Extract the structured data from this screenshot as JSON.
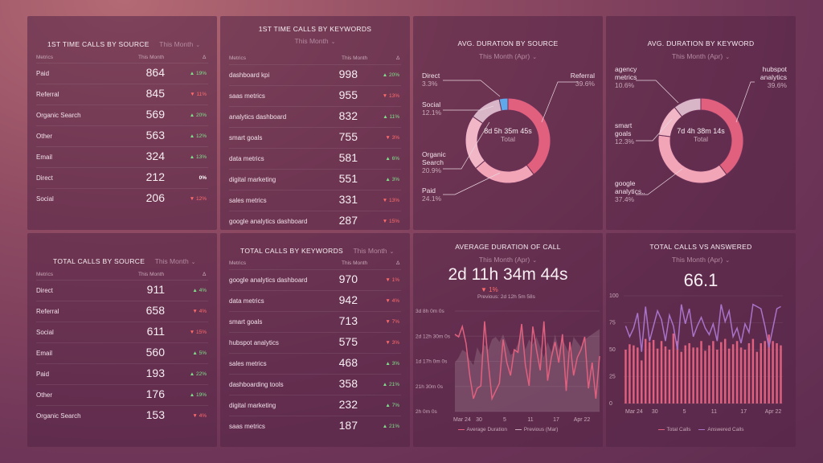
{
  "colors": {
    "pink": "#e0607e",
    "pink_light": "#f3a5b8",
    "purple": "#a873c8",
    "grey": "#c9a9b8",
    "blue": "#5fa8ea"
  },
  "sources_calls": {
    "title": "1ST TIME CALLS BY SOURCE",
    "subtitle": "This Month",
    "col_metrics": "Metrics",
    "col_period": "This Month",
    "col_delta": "Δ",
    "rows": [
      {
        "label": "Paid",
        "value": "864",
        "delta": "▲ 19%",
        "dir": "up"
      },
      {
        "label": "Referral",
        "value": "845",
        "delta": "▼ 11%",
        "dir": "down"
      },
      {
        "label": "Organic Search",
        "value": "569",
        "delta": "▲ 20%",
        "dir": "up"
      },
      {
        "label": "Other",
        "value": "563",
        "delta": "▲ 12%",
        "dir": "up"
      },
      {
        "label": "Email",
        "value": "324",
        "delta": "▲ 13%",
        "dir": "up"
      },
      {
        "label": "Direct",
        "value": "212",
        "delta": "0%",
        "dir": "flat"
      },
      {
        "label": "Social",
        "value": "206",
        "delta": "▼ 12%",
        "dir": "down"
      }
    ]
  },
  "keywords_calls": {
    "title": "1ST TIME CALLS BY KEYWORDS",
    "subtitle": "This Month",
    "col_metrics": "Metrics",
    "col_period": "This Month",
    "col_delta": "Δ",
    "rows": [
      {
        "label": "dashboard kpi",
        "value": "998",
        "delta": "▲ 20%",
        "dir": "up"
      },
      {
        "label": "saas metrics",
        "value": "955",
        "delta": "▼ 13%",
        "dir": "down"
      },
      {
        "label": "analytics dashboard",
        "value": "832",
        "delta": "▲ 11%",
        "dir": "up"
      },
      {
        "label": "smart goals",
        "value": "755",
        "delta": "▼ 3%",
        "dir": "down"
      },
      {
        "label": "data metrics",
        "value": "581",
        "delta": "▲ 6%",
        "dir": "up"
      },
      {
        "label": "digital marketing",
        "value": "551",
        "delta": "▲ 3%",
        "dir": "up"
      },
      {
        "label": "sales metrics",
        "value": "331",
        "delta": "▼ 13%",
        "dir": "down"
      },
      {
        "label": "google analytics dashboard",
        "value": "287",
        "delta": "▼ 15%",
        "dir": "down"
      }
    ]
  },
  "avg_source": {
    "title": "AVG. DURATION BY SOURCE",
    "subtitle": "This Month (Apr)",
    "center_value": "8d 5h 35m 45s",
    "center_label": "Total",
    "labels": [
      {
        "name": "Direct",
        "pct": "3.3%"
      },
      {
        "name": "Social",
        "pct": "12.1%"
      },
      {
        "name": "Organic Search",
        "pct": "20.9%"
      },
      {
        "name": "Paid",
        "pct": "24.1%"
      },
      {
        "name": "Referral",
        "pct": "39.6%"
      }
    ],
    "chart_data": {
      "type": "pie",
      "categories": [
        "Referral",
        "Paid",
        "Organic Search",
        "Social",
        "Direct"
      ],
      "values": [
        39.6,
        24.1,
        20.9,
        12.1,
        3.3
      ]
    }
  },
  "avg_keyword": {
    "title": "AVG. DURATION BY KEYWORD",
    "subtitle": "This Month (Apr)",
    "center_value": "7d 4h 38m 14s",
    "center_label": "Total",
    "labels": [
      {
        "name": "agency metrics",
        "pct": "10.6%"
      },
      {
        "name": "smart goals",
        "pct": "12.3%"
      },
      {
        "name": "google analytics..",
        "pct": "37.4%"
      },
      {
        "name": "hubspot analytics",
        "pct": "39.6%"
      }
    ],
    "chart_data": {
      "type": "pie",
      "categories": [
        "hubspot analytics",
        "google analytics..",
        "smart goals",
        "agency metrics"
      ],
      "values": [
        39.6,
        37.4,
        12.3,
        10.6
      ]
    }
  },
  "total_source": {
    "title": "TOTAL CALLS BY SOURCE",
    "subtitle": "This Month",
    "col_metrics": "Metrics",
    "col_period": "This Month",
    "col_delta": "Δ",
    "rows": [
      {
        "label": "Direct",
        "value": "911",
        "delta": "▲ 4%",
        "dir": "up"
      },
      {
        "label": "Referral",
        "value": "658",
        "delta": "▼ 4%",
        "dir": "down"
      },
      {
        "label": "Social",
        "value": "611",
        "delta": "▼ 15%",
        "dir": "down"
      },
      {
        "label": "Email",
        "value": "560",
        "delta": "▲ 5%",
        "dir": "up"
      },
      {
        "label": "Paid",
        "value": "193",
        "delta": "▲ 22%",
        "dir": "up"
      },
      {
        "label": "Other",
        "value": "176",
        "delta": "▲ 19%",
        "dir": "up"
      },
      {
        "label": "Organic Search",
        "value": "153",
        "delta": "▼ 4%",
        "dir": "down"
      }
    ]
  },
  "total_keywords": {
    "title": "TOTAL CALLS BY KEYWORDS",
    "subtitle": "This Month",
    "col_metrics": "Metrics",
    "col_period": "This Month",
    "col_delta": "Δ",
    "rows": [
      {
        "label": "google analytics dashboard",
        "value": "970",
        "delta": "▼ 1%",
        "dir": "down"
      },
      {
        "label": "data metrics",
        "value": "942",
        "delta": "▼ 4%",
        "dir": "down"
      },
      {
        "label": "smart goals",
        "value": "713",
        "delta": "▼ 7%",
        "dir": "down"
      },
      {
        "label": "hubspot analytics",
        "value": "575",
        "delta": "▼ 3%",
        "dir": "down"
      },
      {
        "label": "sales metrics",
        "value": "468",
        "delta": "▲ 3%",
        "dir": "up"
      },
      {
        "label": "dashboarding tools",
        "value": "358",
        "delta": "▲ 21%",
        "dir": "up"
      },
      {
        "label": "digital marketing",
        "value": "232",
        "delta": "▲ 7%",
        "dir": "up"
      },
      {
        "label": "saas metrics",
        "value": "187",
        "delta": "▲ 21%",
        "dir": "up"
      }
    ]
  },
  "avg_call": {
    "title": "AVERAGE DURATION OF CALL",
    "subtitle": "This Month (Apr)",
    "big_value": "2d 11h 34m 44s",
    "change": "▼ 1%",
    "previous": "Previous: 2d 12h 5m 58s",
    "legend": [
      "Average Duration",
      "Previous (Mar)"
    ],
    "chart_data": {
      "type": "line",
      "y_ticks": [
        "3d 8h 0m 0s",
        "2d 12h 30m 0s",
        "1d 17h 0m 0s",
        "21h 30m 0s",
        "2h 0m 0s"
      ],
      "x_ticks": [
        "Mar 24",
        "30",
        "5",
        "11",
        "17",
        "Apr 22"
      ],
      "ylim_hours": [
        2,
        80
      ],
      "series": [
        {
          "name": "Average Duration",
          "values": [
            62,
            60,
            68,
            55,
            30,
            12,
            20,
            22,
            72,
            40,
            12,
            18,
            24,
            58,
            40,
            30,
            50,
            48,
            70,
            38,
            22,
            68,
            50,
            34,
            72,
            26,
            44,
            56,
            40,
            62,
            18,
            56,
            30,
            44,
            50,
            60,
            20,
            40,
            12,
            45
          ]
        },
        {
          "name": "Previous (Mar)",
          "values": [
            40,
            44,
            50,
            48,
            42,
            38,
            52,
            46,
            54,
            50,
            58,
            60,
            56,
            62,
            54,
            46,
            48,
            55,
            66,
            50,
            58,
            54,
            60,
            52,
            44,
            56,
            48,
            62,
            50,
            58,
            52,
            46,
            60,
            56,
            52,
            58,
            60,
            62,
            64,
            66
          ]
        }
      ]
    }
  },
  "total_vs": {
    "title": "TOTAL CALLS VS ANSWERED",
    "subtitle": "This Month (Apr)",
    "big_value": "66.1",
    "legend": [
      "Total Calls",
      "Answered Calls"
    ],
    "chart_data": {
      "type": "bar",
      "y_ticks": [
        "100",
        "75",
        "50",
        "25",
        "0"
      ],
      "x_ticks": [
        "Mar 24",
        "30",
        "5",
        "11",
        "17",
        "Apr 22"
      ],
      "ylim": [
        0,
        100
      ],
      "series": [
        {
          "name": "Total Calls",
          "values": [
            50,
            55,
            54,
            52,
            40,
            60,
            57,
            59,
            51,
            58,
            53,
            50,
            65,
            58,
            48,
            54,
            56,
            52,
            52,
            58,
            49,
            54,
            58,
            50,
            57,
            60,
            51,
            55,
            58,
            52,
            50,
            56,
            60,
            48,
            56,
            58,
            64,
            58,
            56,
            54
          ]
        },
        {
          "name": "Answered Calls",
          "values": [
            72,
            62,
            70,
            84,
            48,
            90,
            58,
            72,
            86,
            78,
            58,
            82,
            72,
            50,
            92,
            74,
            88,
            62,
            72,
            80,
            70,
            64,
            74,
            58,
            92,
            76,
            86,
            62,
            70,
            56,
            74,
            66,
            92,
            90,
            88,
            72,
            52,
            70,
            88,
            90
          ]
        }
      ]
    }
  }
}
